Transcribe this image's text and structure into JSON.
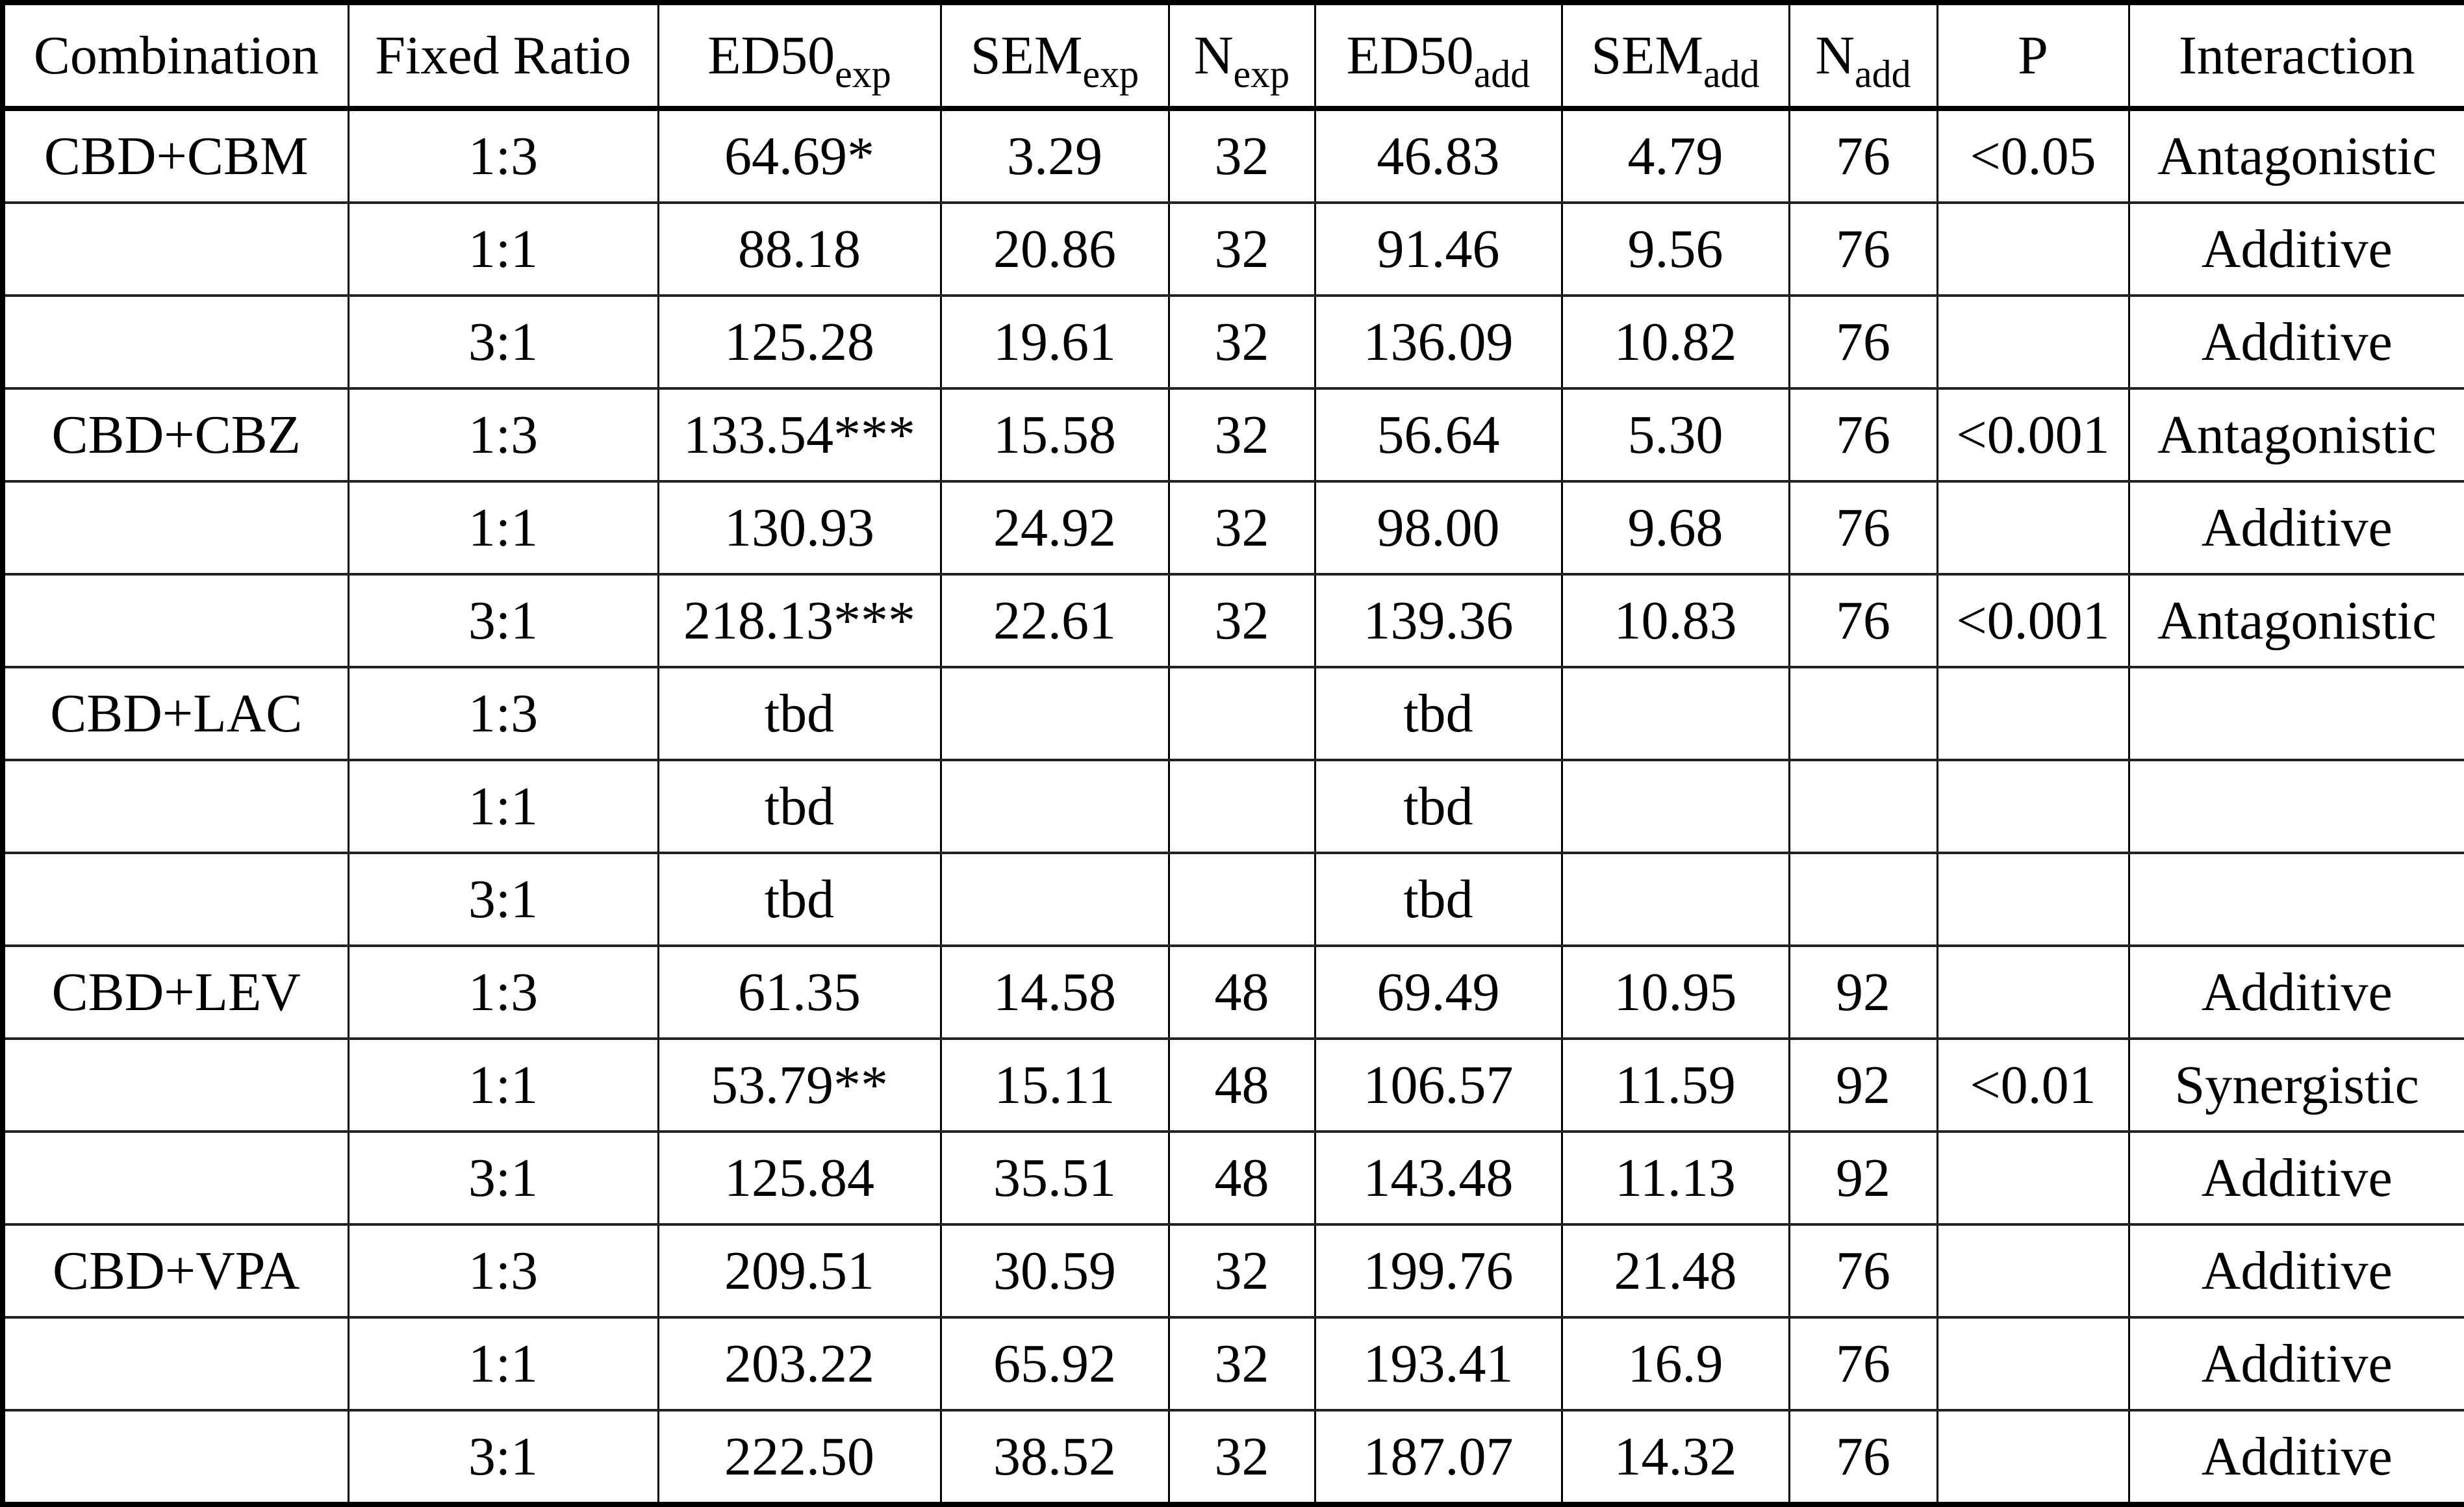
{
  "table": {
    "headers": [
      {
        "main": "Combination",
        "sub": ""
      },
      {
        "main": "Fixed Ratio",
        "sub": ""
      },
      {
        "main": "ED50",
        "sub": "exp"
      },
      {
        "main": "SEM",
        "sub": "exp"
      },
      {
        "main": "N",
        "sub": "exp"
      },
      {
        "main": "ED50",
        "sub": "add"
      },
      {
        "main": "SEM",
        "sub": "add"
      },
      {
        "main": "N",
        "sub": "add"
      },
      {
        "main": "P",
        "sub": ""
      },
      {
        "main": "Interaction",
        "sub": ""
      }
    ],
    "rows": [
      [
        "CBD+CBM",
        "1:3",
        "64.69*",
        "3.29",
        "32",
        "46.83",
        "4.79",
        "76",
        "<0.05",
        "Antagonistic"
      ],
      [
        "",
        "1:1",
        "88.18",
        "20.86",
        "32",
        "91.46",
        "9.56",
        "76",
        "",
        "Additive"
      ],
      [
        "",
        "3:1",
        "125.28",
        "19.61",
        "32",
        "136.09",
        "10.82",
        "76",
        "",
        "Additive"
      ],
      [
        "CBD+CBZ",
        "1:3",
        "133.54***",
        "15.58",
        "32",
        "56.64",
        "5.30",
        "76",
        "<0.001",
        "Antagonistic"
      ],
      [
        "",
        "1:1",
        "130.93",
        "24.92",
        "32",
        "98.00",
        "9.68",
        "76",
        "",
        "Additive"
      ],
      [
        "",
        "3:1",
        "218.13***",
        "22.61",
        "32",
        "139.36",
        "10.83",
        "76",
        "<0.001",
        "Antagonistic"
      ],
      [
        "CBD+LAC",
        "1:3",
        "tbd",
        "",
        "",
        "tbd",
        "",
        "",
        "",
        ""
      ],
      [
        "",
        "1:1",
        "tbd",
        "",
        "",
        "tbd",
        "",
        "",
        "",
        ""
      ],
      [
        "",
        "3:1",
        "tbd",
        "",
        "",
        "tbd",
        "",
        "",
        "",
        ""
      ],
      [
        "CBD+LEV",
        "1:3",
        "61.35",
        "14.58",
        "48",
        "69.49",
        "10.95",
        "92",
        "",
        "Additive"
      ],
      [
        "",
        "1:1",
        "53.79**",
        "15.11",
        "48",
        "106.57",
        "11.59",
        "92",
        "<0.01",
        "Synergistic"
      ],
      [
        "",
        "3:1",
        "125.84",
        "35.51",
        "48",
        "143.48",
        "11.13",
        "92",
        "",
        "Additive"
      ],
      [
        "CBD+VPA",
        "1:3",
        "209.51",
        "30.59",
        "32",
        "199.76",
        "21.48",
        "76",
        "",
        "Additive"
      ],
      [
        "",
        "1:1",
        "203.22",
        "65.92",
        "32",
        "193.41",
        "16.9",
        "76",
        "",
        "Additive"
      ],
      [
        "",
        "3:1",
        "222.50",
        "38.52",
        "32",
        "187.07",
        "14.32",
        "76",
        "",
        "Additive"
      ]
    ]
  }
}
